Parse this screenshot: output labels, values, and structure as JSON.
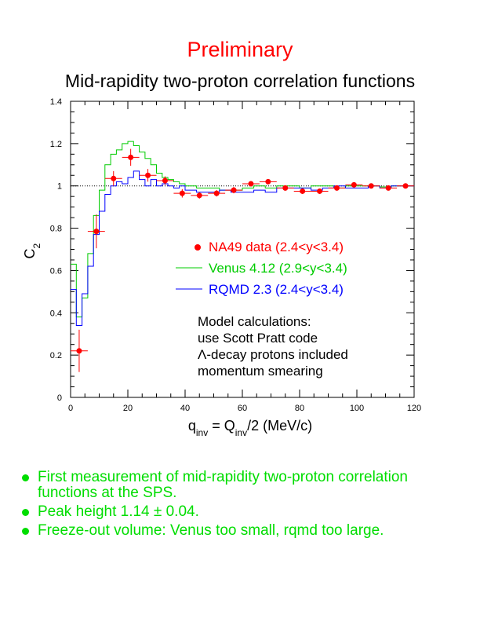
{
  "header": {
    "preliminary": "Preliminary",
    "title": "Mid-rapidity two-proton correlation functions"
  },
  "colors": {
    "data": "#ff0000",
    "venus": "#00cc00",
    "rqmd": "#0000ff",
    "bullets": "#00dd00",
    "axis": "#000000"
  },
  "chart_data": {
    "type": "scatter",
    "title": "Mid-rapidity two-proton correlation functions",
    "xlabel": "q_inv = Q_inv/2 (MeV/c)",
    "ylabel": "C_2",
    "xlim": [
      0,
      120
    ],
    "ylim": [
      0,
      1.4
    ],
    "xticks": [
      0,
      20,
      40,
      60,
      80,
      100,
      120
    ],
    "yticks": [
      0,
      0.2,
      0.4,
      0.6,
      0.8,
      1,
      1.2,
      1.4
    ],
    "reference_line": 1.0,
    "grid": false,
    "legend_placement": "center-right",
    "series": [
      {
        "name": "NA49 data (2.4<y<3.4)",
        "kind": "points",
        "x": [
          3,
          9,
          15,
          21,
          27,
          33,
          39,
          45,
          51,
          57,
          63,
          69,
          75,
          81,
          87,
          93,
          99,
          105,
          111,
          117
        ],
        "y": [
          0.22,
          0.785,
          1.035,
          1.135,
          1.05,
          1.025,
          0.965,
          0.955,
          0.965,
          0.98,
          1.01,
          1.02,
          0.99,
          0.975,
          0.975,
          0.99,
          1.005,
          1.0,
          0.99,
          1.0
        ],
        "yerr": [
          0.1,
          0.08,
          0.035,
          0.04,
          0.03,
          0.02,
          0.02,
          0.015,
          0.015,
          0.015,
          0.012,
          0.012,
          0.012,
          0.012,
          0.012,
          0.01,
          0.01,
          0.01,
          0.01,
          0.01
        ],
        "xerr": 3
      },
      {
        "name": "Venus 4.12 (2.9<y<3.4)",
        "kind": "step",
        "x": [
          0,
          2,
          4,
          6,
          8,
          10,
          12,
          14,
          16,
          18,
          20,
          22,
          24,
          26,
          28,
          30,
          32,
          34,
          36,
          38,
          40,
          44,
          48,
          52,
          56,
          60,
          64,
          68,
          72,
          76,
          80,
          84,
          88,
          92,
          96,
          100,
          104,
          108,
          112,
          116
        ],
        "y": [
          0.63,
          0.38,
          0.47,
          0.68,
          0.86,
          0.98,
          1.1,
          1.15,
          1.17,
          1.2,
          1.21,
          1.19,
          1.16,
          1.13,
          1.1,
          1.06,
          1.04,
          1.03,
          1.02,
          1.01,
          1.0,
          0.99,
          0.99,
          0.98,
          0.98,
          0.99,
          1.0,
          0.99,
          1.0,
          1.0,
          0.99,
          1.0,
          1.0,
          0.99,
          1.0,
          1.0,
          1.0,
          0.995,
          1.0,
          1.0
        ],
        "x_end": 120
      },
      {
        "name": "RQMD 2.3 (2.4<y<3.4)",
        "kind": "step",
        "x": [
          0,
          2,
          4,
          6,
          8,
          10,
          12,
          14,
          16,
          18,
          20,
          22,
          24,
          26,
          28,
          30,
          32,
          34,
          36,
          38,
          40,
          44,
          48,
          52,
          56,
          60,
          64,
          68,
          72,
          76,
          80,
          84,
          88,
          92,
          96,
          100,
          104,
          108,
          112,
          116
        ],
        "y": [
          0.51,
          0.34,
          0.49,
          0.62,
          0.77,
          0.88,
          0.96,
          1.0,
          1.02,
          1.01,
          1.04,
          1.07,
          1.03,
          1.0,
          1.03,
          1.0,
          1.01,
          1.0,
          0.99,
          1.0,
          0.98,
          0.97,
          0.97,
          0.98,
          0.97,
          0.97,
          0.98,
          0.97,
          0.99,
          0.99,
          0.99,
          0.98,
          0.99,
          1.0,
          0.99,
          0.99,
          1.0,
          0.99,
          1.0,
          1.0
        ],
        "x_end": 120
      }
    ],
    "annotations": [
      "Model calculations:",
      "use Scott Pratt code",
      "Λ-decay protons included",
      "momentum smearing"
    ]
  },
  "bullets": [
    "First measurement of mid-rapidity two-proton correlation functions at the SPS.",
    "Peak height 1.14 ± 0.04.",
    "Freeze-out volume: Venus too small, rqmd too large."
  ]
}
